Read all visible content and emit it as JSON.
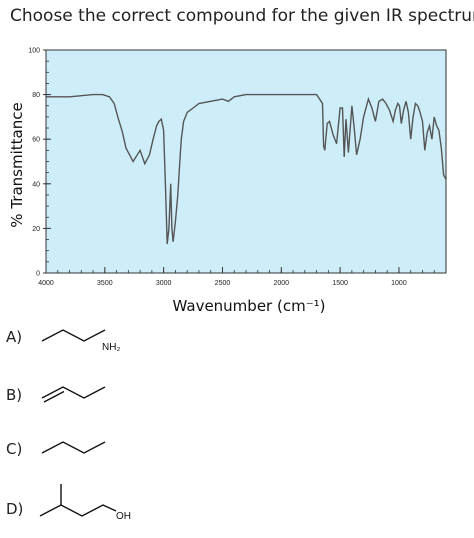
{
  "question": "Choose the correct compound for the given IR spectrum.",
  "colors": {
    "plot_bg": "#cdeef8",
    "line": "#555555"
  },
  "chart_data": {
    "type": "line",
    "title": "",
    "xlabel": "Wavenumber (cm⁻¹)",
    "ylabel": "% Transmittance",
    "xlim": [
      4000,
      600
    ],
    "ylim": [
      0,
      100
    ],
    "x_reversed": true,
    "grid": false,
    "xticks": [
      4000,
      3500,
      3000,
      2500,
      2000,
      1500,
      1000
    ],
    "xtick_labels": [
      "4000",
      "3500",
      "3000",
      "2500",
      "2000",
      "1500",
      "1000"
    ],
    "yticks": [
      0,
      20,
      40,
      60,
      80,
      100
    ],
    "ytick_labels": [
      "0",
      "20",
      "40",
      "60",
      "80",
      "100"
    ],
    "series": [
      {
        "name": "",
        "x": [
          4000,
          3800,
          3600,
          3520,
          3460,
          3420,
          3390,
          3350,
          3320,
          3260,
          3200,
          3160,
          3120,
          3090,
          3060,
          3040,
          3020,
          3000,
          2985,
          2970,
          2955,
          2940,
          2930,
          2920,
          2900,
          2880,
          2860,
          2850,
          2830,
          2800,
          2750,
          2700,
          2600,
          2500,
          2450,
          2400,
          2300,
          2200,
          2100,
          2000,
          1900,
          1800,
          1700,
          1650,
          1640,
          1630,
          1610,
          1590,
          1560,
          1530,
          1500,
          1480,
          1465,
          1450,
          1430,
          1400,
          1380,
          1360,
          1330,
          1300,
          1260,
          1230,
          1200,
          1170,
          1140,
          1110,
          1080,
          1050,
          1030,
          1010,
          995,
          980,
          960,
          940,
          920,
          900,
          880,
          860,
          840,
          820,
          800,
          780,
          760,
          740,
          720,
          700,
          680,
          660,
          640,
          620,
          600
        ],
        "y": [
          79,
          79,
          80,
          80,
          79,
          76,
          70,
          63,
          56,
          50,
          55,
          49,
          53,
          60,
          66,
          68,
          69,
          64,
          40,
          13,
          20,
          40,
          20,
          14,
          23,
          35,
          52,
          60,
          68,
          72,
          74,
          76,
          77,
          78,
          77,
          79,
          80,
          80,
          80,
          80,
          80,
          80,
          80,
          76,
          57,
          55,
          67,
          68,
          62,
          58,
          74,
          74,
          52,
          69,
          54,
          75,
          65,
          53,
          60,
          70,
          78,
          74,
          68,
          77,
          78,
          76,
          73,
          68,
          73,
          76,
          75,
          67,
          73,
          77,
          72,
          60,
          70,
          76,
          75,
          72,
          68,
          55,
          63,
          66,
          60,
          70,
          66,
          64,
          56,
          44,
          42
        ]
      }
    ]
  },
  "options": [
    {
      "letter": "A)",
      "label": "NH₂"
    },
    {
      "letter": "B)",
      "label": ""
    },
    {
      "letter": "C)",
      "label": ""
    },
    {
      "letter": "D)",
      "label": "OH"
    }
  ]
}
